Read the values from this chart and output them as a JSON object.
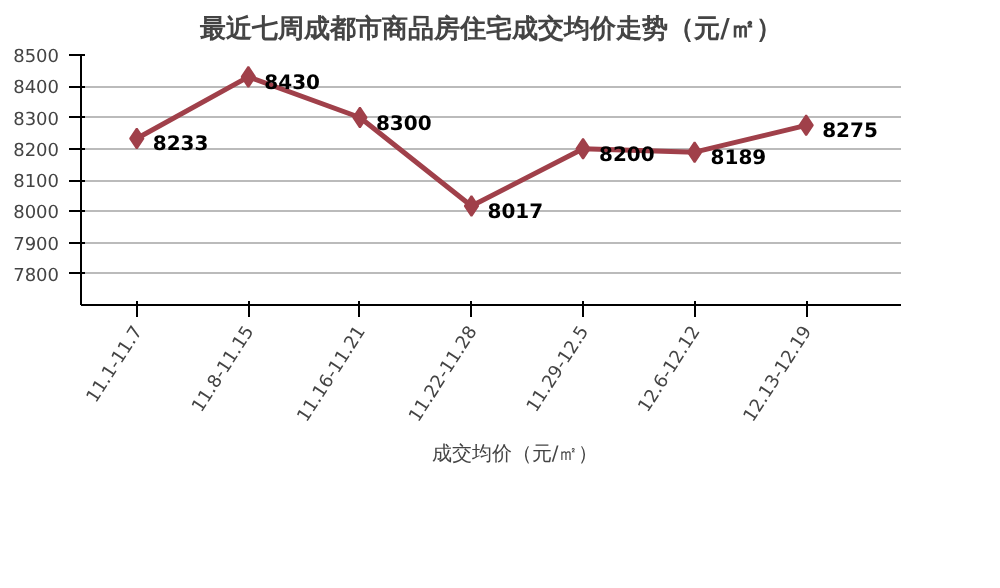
{
  "chart_data": {
    "type": "line",
    "title": "最近七周成都市商品房住宅成交均价走势（元/㎡）",
    "categories": [
      "11.1-11.7",
      "11.8-11.15",
      "11.16-11.21",
      "11.22-11.28",
      "11.29-12.5",
      "12.6-12.12",
      "12.13-12.19"
    ],
    "series": [
      {
        "name": "成交均价（元/㎡）",
        "color": "#a0404a",
        "values": [
          8233,
          8430,
          8300,
          8017,
          8200,
          8189,
          8275
        ]
      }
    ],
    "ylim": [
      7700,
      8500
    ],
    "yticks": [
      7800,
      7900,
      8000,
      8100,
      8200,
      8300,
      8400,
      8500
    ],
    "grid": "y",
    "legend": "bottom",
    "marker": "diamond",
    "line_style": "solid",
    "data_labels": true
  }
}
